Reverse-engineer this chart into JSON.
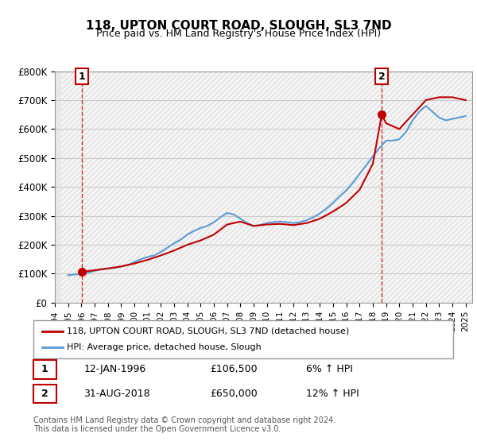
{
  "title": "118, UPTON COURT ROAD, SLOUGH, SL3 7ND",
  "subtitle": "Price paid vs. HM Land Registry's House Price Index (HPI)",
  "ylim": [
    0,
    800000
  ],
  "yticks": [
    0,
    100000,
    200000,
    300000,
    400000,
    500000,
    600000,
    700000,
    800000
  ],
  "ytick_labels": [
    "£0",
    "£100K",
    "£200K",
    "£300K",
    "£400K",
    "£500K",
    "£600K",
    "£700K",
    "£800K"
  ],
  "xlim_start": 1994.5,
  "xlim_end": 2025.5,
  "xticks": [
    1994,
    1995,
    1996,
    1997,
    1998,
    1999,
    2000,
    2001,
    2002,
    2003,
    2004,
    2005,
    2006,
    2007,
    2008,
    2009,
    2010,
    2011,
    2012,
    2013,
    2014,
    2015,
    2016,
    2017,
    2018,
    2019,
    2020,
    2021,
    2022,
    2023,
    2024,
    2025
  ],
  "bg_color": "#ffffff",
  "grid_color": "#cccccc",
  "hpi_color": "#5b9bd5",
  "price_color": "#c00000",
  "legend_label_price": "118, UPTON COURT ROAD, SLOUGH, SL3 7ND (detached house)",
  "legend_label_hpi": "HPI: Average price, detached house, Slough",
  "annotation1_label": "1",
  "annotation1_date": "12-JAN-1996",
  "annotation1_price": "£106,500",
  "annotation1_hpi": "6% ↑ HPI",
  "annotation2_label": "2",
  "annotation2_date": "31-AUG-2018",
  "annotation2_price": "£650,000",
  "annotation2_hpi": "12% ↑ HPI",
  "footer": "Contains HM Land Registry data © Crown copyright and database right 2024.\nThis data is licensed under the Open Government Licence v3.0.",
  "sale1_x": 1996.04,
  "sale1_y": 106500,
  "sale2_x": 2018.67,
  "sale2_y": 650000,
  "hpi_years": [
    1995,
    1995.5,
    1996,
    1996.5,
    1997,
    1997.5,
    1998,
    1998.5,
    1999,
    1999.5,
    2000,
    2000.5,
    2001,
    2001.5,
    2002,
    2002.5,
    2003,
    2003.5,
    2004,
    2004.5,
    2005,
    2005.5,
    2006,
    2006.5,
    2007,
    2007.5,
    2008,
    2008.5,
    2009,
    2009.5,
    2010,
    2010.5,
    2011,
    2011.5,
    2012,
    2012.5,
    2013,
    2013.5,
    2014,
    2014.5,
    2015,
    2015.5,
    2016,
    2016.5,
    2017,
    2017.5,
    2018,
    2018.5,
    2019,
    2019.5,
    2020,
    2020.5,
    2021,
    2021.5,
    2022,
    2022.5,
    2023,
    2023.5,
    2024,
    2024.5,
    2025
  ],
  "hpi_values": [
    95000,
    97000,
    100000,
    103000,
    110000,
    115000,
    118000,
    120000,
    125000,
    130000,
    140000,
    150000,
    158000,
    163000,
    175000,
    190000,
    205000,
    218000,
    235000,
    248000,
    258000,
    265000,
    278000,
    295000,
    310000,
    305000,
    290000,
    275000,
    265000,
    268000,
    275000,
    278000,
    280000,
    278000,
    275000,
    278000,
    285000,
    295000,
    308000,
    325000,
    345000,
    368000,
    388000,
    415000,
    445000,
    475000,
    505000,
    535000,
    560000,
    560000,
    565000,
    590000,
    630000,
    660000,
    680000,
    660000,
    640000,
    630000,
    635000,
    640000,
    645000
  ],
  "price_line_years": [
    1996.04,
    1997,
    1998,
    1999,
    2000,
    2001,
    2002,
    2003,
    2004,
    2005,
    2006,
    2007,
    2008,
    2009,
    2010,
    2011,
    2012,
    2013,
    2014,
    2015,
    2016,
    2017,
    2018.0,
    2018.67,
    2019,
    2020,
    2021,
    2022,
    2023,
    2024,
    2025
  ],
  "price_line_values": [
    106500,
    112000,
    118000,
    125000,
    135000,
    148000,
    163000,
    180000,
    200000,
    215000,
    235000,
    270000,
    280000,
    265000,
    270000,
    272000,
    268000,
    275000,
    290000,
    315000,
    345000,
    390000,
    480000,
    650000,
    620000,
    600000,
    650000,
    700000,
    710000,
    710000,
    700000
  ]
}
